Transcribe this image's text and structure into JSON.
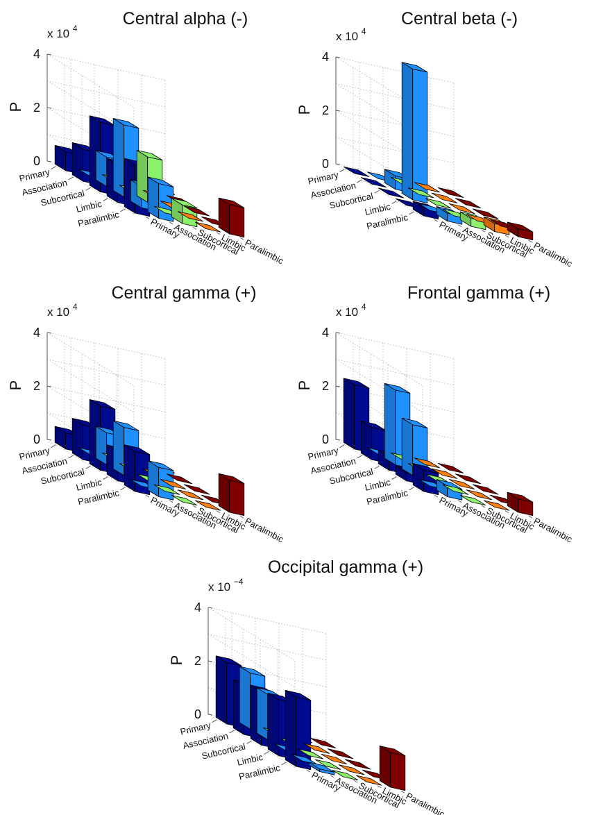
{
  "figure": {
    "row_categories": [
      "Primary",
      "Association",
      "Subcortical",
      "Limbic",
      "Paralimbic"
    ],
    "col_categories": [
      "Primary",
      "Association",
      "Subcortical",
      "Limbic",
      "Paralimbic"
    ],
    "row_colors": [
      "#000a8f",
      "#1e90ff",
      "#8cf26b",
      "#ff7f0f",
      "#800000"
    ],
    "gridlines": true
  },
  "chart_data": [
    {
      "type": "bar3d",
      "title": "Central alpha (-)",
      "ylabel": "P",
      "multiplier": "x 10",
      "exponent": "4",
      "zlim": [
        0,
        4
      ],
      "zticks": [
        "0",
        "2",
        "4"
      ],
      "row_labels": [
        "Primary",
        "Association",
        "Subcortical",
        "Limbic",
        "Paralimbic"
      ],
      "col_labels": [
        "Primary",
        "Association",
        "Subcortical",
        "Limbic",
        "Paralimbic"
      ],
      "values": [
        [
          0.7,
          0,
          0,
          0,
          0
        ],
        [
          1.2,
          1.1,
          0,
          0,
          0
        ],
        [
          2.6,
          2.7,
          1.7,
          0,
          0
        ],
        [
          1.4,
          0.8,
          0,
          0,
          0
        ],
        [
          1.8,
          1.3,
          0.7,
          0,
          1.1
        ]
      ]
    },
    {
      "type": "bar3d",
      "title": "Central beta (-)",
      "ylabel": "P",
      "multiplier": "x 10",
      "exponent": "4",
      "zlim": [
        0,
        4
      ],
      "zticks": [
        "0",
        "2",
        "4"
      ],
      "row_labels": [
        "Primary",
        "Association",
        "Subcortical",
        "Limbic",
        "Paralimbic"
      ],
      "col_labels": [
        "Primary",
        "Association",
        "Subcortical",
        "Limbic",
        "Paralimbic"
      ],
      "values": [
        [
          0,
          0,
          0,
          0,
          0
        ],
        [
          0,
          0.5,
          0,
          0,
          0
        ],
        [
          0,
          4.9,
          0,
          0,
          0
        ],
        [
          0,
          0,
          0,
          0,
          0
        ],
        [
          0.3,
          0.3,
          0.3,
          0.3,
          0.3
        ]
      ]
    },
    {
      "type": "bar3d",
      "title": "Central gamma (+)",
      "ylabel": "P",
      "multiplier": "x 10",
      "exponent": "4",
      "zlim": [
        0,
        4
      ],
      "zticks": [
        "0",
        "2",
        "4"
      ],
      "row_labels": [
        "Primary",
        "Association",
        "Subcortical",
        "Limbic",
        "Paralimbic"
      ],
      "col_labels": [
        "Primary",
        "Association",
        "Subcortical",
        "Limbic",
        "Paralimbic"
      ],
      "values": [
        [
          0.6,
          0,
          0,
          0,
          0
        ],
        [
          1.3,
          1.2,
          0,
          0,
          0
        ],
        [
          2.4,
          1.8,
          0,
          0,
          0
        ],
        [
          1.1,
          0,
          0,
          0,
          0
        ],
        [
          1.5,
          1.1,
          0,
          0,
          1.2
        ]
      ]
    },
    {
      "type": "bar3d",
      "title": "Frontal gamma (+)",
      "ylabel": "P",
      "multiplier": "x 10",
      "exponent": "4",
      "zlim": [
        0,
        4
      ],
      "zticks": [
        "0",
        "2",
        "4"
      ],
      "row_labels": [
        "Primary",
        "Association",
        "Subcortical",
        "Limbic",
        "Paralimbic"
      ],
      "col_labels": [
        "Primary",
        "Association",
        "Subcortical",
        "Limbic",
        "Paralimbic"
      ],
      "values": [
        [
          2.4,
          0,
          0,
          0,
          0
        ],
        [
          1.2,
          2.8,
          0,
          0,
          0
        ],
        [
          0.5,
          1.9,
          0,
          0,
          0
        ],
        [
          0.3,
          0,
          0,
          0,
          0
        ],
        [
          0.8,
          0.4,
          0,
          0,
          0.5
        ]
      ]
    },
    {
      "type": "bar3d",
      "title": "Occipital gamma (+)",
      "ylabel": "P",
      "multiplier": "x 10",
      "exponent": "−4",
      "zlim": [
        0,
        4
      ],
      "zticks": [
        "0",
        "2",
        "4"
      ],
      "row_labels": [
        "Primary",
        "Association",
        "Subcortical",
        "Limbic",
        "Paralimbic"
      ],
      "col_labels": [
        "Primary",
        "Association",
        "Subcortical",
        "Limbic",
        "Paralimbic"
      ],
      "values": [
        [
          2.3,
          2.1,
          0,
          0,
          0
        ],
        [
          1.8,
          1.7,
          0,
          0,
          0
        ],
        [
          2.0,
          0,
          0,
          0,
          0
        ],
        [
          2.1,
          0,
          0,
          0,
          0
        ],
        [
          2.6,
          0.1,
          0,
          0,
          1.3
        ]
      ]
    }
  ]
}
